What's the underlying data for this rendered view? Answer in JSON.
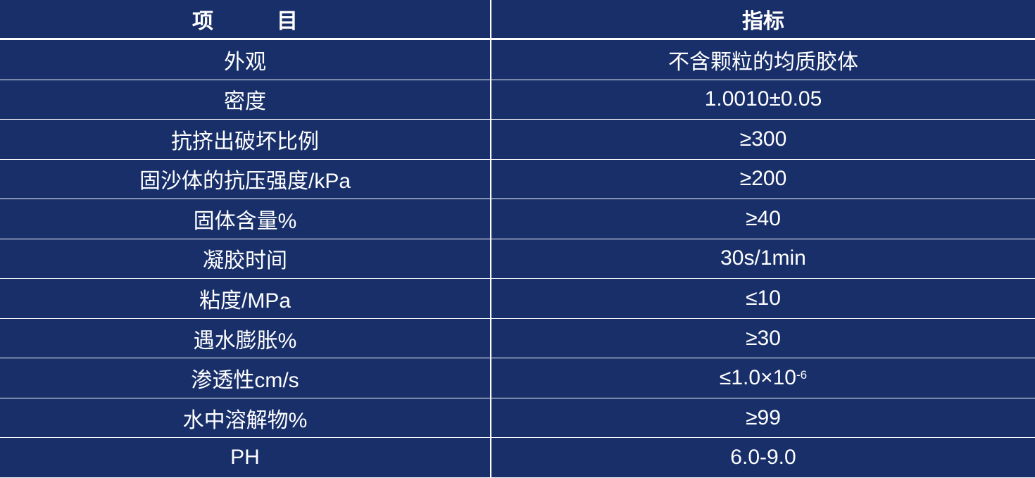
{
  "header": {
    "item": "项　　　目",
    "spec": "指标"
  },
  "rows": [
    {
      "item": "外观",
      "spec": "不含颗粒的均质胶体"
    },
    {
      "item": "密度",
      "spec": "1.0010±0.05"
    },
    {
      "item": "抗挤出破坏比例",
      "spec": "≥300"
    },
    {
      "item": "固沙体的抗压强度/kPa",
      "spec": "≥200"
    },
    {
      "item": "固体含量%",
      "spec": "≥40"
    },
    {
      "item": "凝胶时间",
      "spec": "30s/1min"
    },
    {
      "item": "粘度/MPa",
      "spec": "≤10"
    },
    {
      "item": "遇水膨胀%",
      "spec": "≥30"
    },
    {
      "item": "渗透性cm/s",
      "spec": "≤1.0×10",
      "spec_sup": "-6"
    },
    {
      "item": "水中溶解物%",
      "spec": "≥99"
    },
    {
      "item": "PH",
      "spec": "6.0-9.0"
    }
  ],
  "colors": {
    "background": "#182f6a",
    "text": "#ffffff",
    "grid": "#ffffff"
  }
}
